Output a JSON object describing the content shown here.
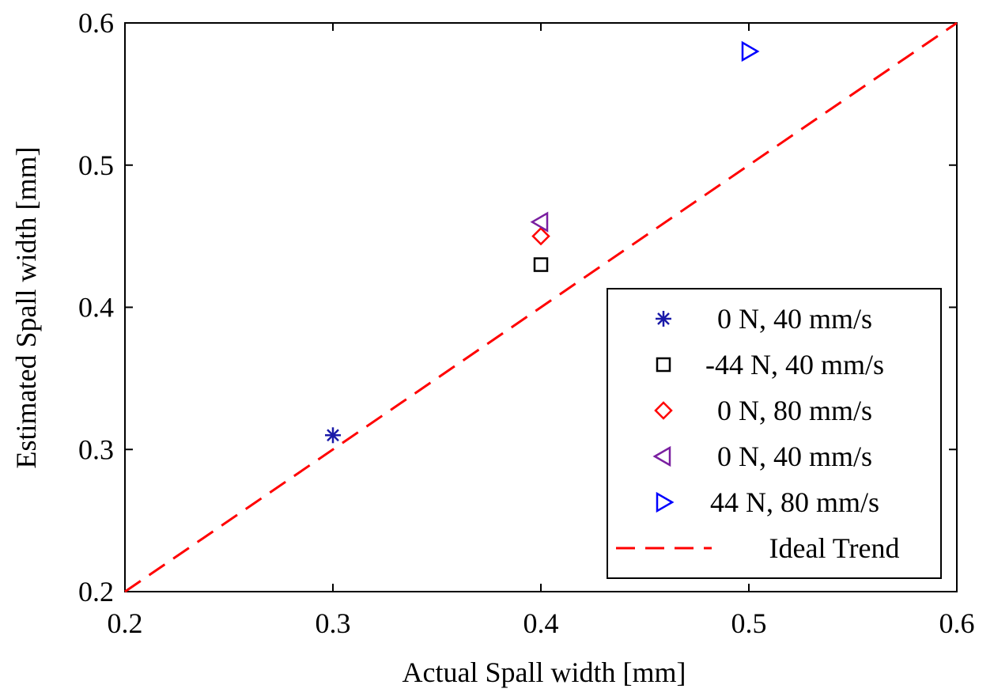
{
  "chart_data": {
    "type": "scatter",
    "title": "",
    "xlabel": "Actual Spall width [mm]",
    "ylabel": "Estimated Spall width [mm]",
    "xlim": [
      0.2,
      0.6
    ],
    "ylim": [
      0.2,
      0.6
    ],
    "xticks": [
      "0.2",
      "0.3",
      "0.4",
      "0.5",
      "0.6"
    ],
    "yticks": [
      "0.2",
      "0.3",
      "0.4",
      "0.5",
      "0.6"
    ],
    "grid": false,
    "legend_position": "bottom-right",
    "series": [
      {
        "name": "0 N, 40 mm/s",
        "marker": "asterisk",
        "color": "#1a1aa8",
        "points": [
          [
            0.3,
            0.31
          ]
        ]
      },
      {
        "name": "-44 N, 40 mm/s",
        "marker": "square",
        "color": "#000000",
        "points": [
          [
            0.4,
            0.43
          ]
        ]
      },
      {
        "name": "0 N, 80 mm/s",
        "marker": "diamond",
        "color": "#ff0000",
        "points": [
          [
            0.4,
            0.45
          ]
        ]
      },
      {
        "name": "0 N, 40 mm/s",
        "marker": "triangle-left",
        "color": "#7a1fa0",
        "points": [
          [
            0.4,
            0.46
          ]
        ]
      },
      {
        "name": "44 N, 80 mm/s",
        "marker": "triangle-right",
        "color": "#0000ff",
        "points": [
          [
            0.5,
            0.58
          ]
        ]
      }
    ],
    "reference_line": {
      "name": "Ideal Trend",
      "style": "dashed",
      "color": "#ff0000",
      "points": [
        [
          0.2,
          0.2
        ],
        [
          0.6,
          0.6
        ]
      ]
    }
  }
}
